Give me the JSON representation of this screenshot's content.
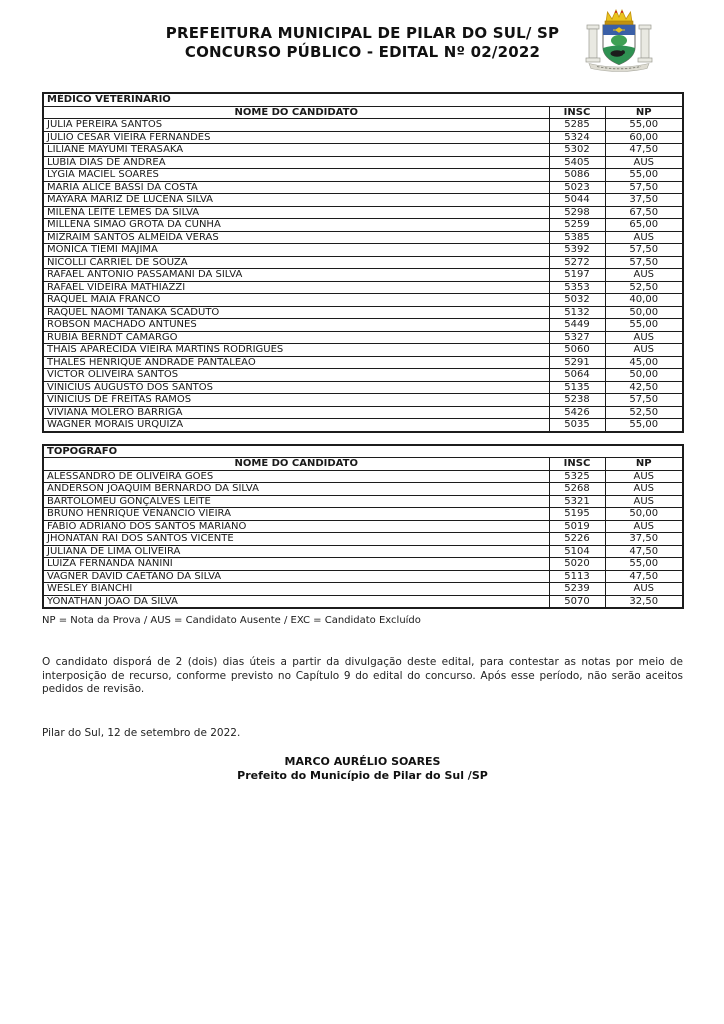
{
  "header": {
    "title_line1": "PREFEITURA MUNICIPAL DE PILAR DO SUL/ SP",
    "title_line2": "CONCURSO PÚBLICO - EDITAL Nº 02/2022"
  },
  "logo": {
    "name": "pilar-do-sul-coat-of-arms-icon"
  },
  "colors": {
    "crown_gold": "#eac31e",
    "crown_dark": "#c2920e",
    "crown_red": "#cc3322",
    "column_gray": "#e9e9e2",
    "column_edge": "#9a9a92",
    "shield_blue": "#3a5fa6",
    "shield_green": "#2f9152",
    "bush_green": "#3fa054",
    "animal_black": "#1c1c1c",
    "ribbon_gray": "#dedcd2"
  },
  "tables": [
    {
      "title": "MÉDICO VETERINÁRIO",
      "columns": [
        "NOME DO CANDIDATO",
        "INSC",
        "NP"
      ],
      "rows": [
        {
          "name": "JÚLIA PEREIRA SANTOS",
          "insc": "5285",
          "np": "55,00"
        },
        {
          "name": "JULIO CESAR VIEIRA FERNANDES",
          "insc": "5324",
          "np": "60,00"
        },
        {
          "name": "LILIANE MAYUMI TERASAKA",
          "insc": "5302",
          "np": "47,50"
        },
        {
          "name": "LUBIA DIAS DE ANDREA",
          "insc": "5405",
          "np": "AUS"
        },
        {
          "name": "LYGIA MACIEL SOARES",
          "insc": "5086",
          "np": "55,00"
        },
        {
          "name": "MARIA ALICE BASSI DA COSTA",
          "insc": "5023",
          "np": "57,50"
        },
        {
          "name": "MAYARA MARIZ DE LUCENA SILVA",
          "insc": "5044",
          "np": "37,50"
        },
        {
          "name": "MILENA LEITE LEMES DA SILVA",
          "insc": "5298",
          "np": "67,50"
        },
        {
          "name": "MILLENA SIMÃO GROTA DA CUNHA",
          "insc": "5259",
          "np": "65,00"
        },
        {
          "name": "MIZRAIM SANTOS ALMEIDA VERAS",
          "insc": "5385",
          "np": "AUS"
        },
        {
          "name": "MONICA TIEMI MAJIMA",
          "insc": "5392",
          "np": "57,50"
        },
        {
          "name": "NICOLLI CARRIEL DE SOUZA",
          "insc": "5272",
          "np": "57,50"
        },
        {
          "name": "RAFAEL ANTONIO PASSAMANI DA SILVA",
          "insc": "5197",
          "np": "AUS"
        },
        {
          "name": "RAFAEL VIDEIRA MATHIAZZI",
          "insc": "5353",
          "np": "52,50"
        },
        {
          "name": "RAQUEL MAIA FRANCO",
          "insc": "5032",
          "np": "40,00"
        },
        {
          "name": "RAQUEL NAOMI TANAKA SCADUTO",
          "insc": "5132",
          "np": "50,00"
        },
        {
          "name": "ROBSON MACHADO ANTUNES",
          "insc": "5449",
          "np": "55,00"
        },
        {
          "name": "RUBIA BERNDT CAMARGO",
          "insc": "5327",
          "np": "AUS"
        },
        {
          "name": "THAÍS APARECIDA VIEIRA MARTINS RODRIGUES",
          "insc": "5060",
          "np": "AUS"
        },
        {
          "name": "THALES HENRIQUE ANDRADE PANTALEÃO",
          "insc": "5291",
          "np": "45,00"
        },
        {
          "name": "VICTOR OLIVEIRA SANTOS",
          "insc": "5064",
          "np": "50,00"
        },
        {
          "name": "VINICIUS AUGUSTO DOS SANTOS",
          "insc": "5135",
          "np": "42,50"
        },
        {
          "name": "VINICIUS DE FREITAS RAMOS",
          "insc": "5238",
          "np": "57,50"
        },
        {
          "name": "VIVIANA MOLERO BARRIGA",
          "insc": "5426",
          "np": "52,50"
        },
        {
          "name": "WAGNER MORAIS URQUIZA",
          "insc": "5035",
          "np": "55,00"
        }
      ]
    },
    {
      "title": "TOPÓGRAFO",
      "columns": [
        "NOME DO CANDIDATO",
        "INSC",
        "NP"
      ],
      "rows": [
        {
          "name": "ALESSANDRO DE OLIVEIRA GÓES",
          "insc": "5325",
          "np": "AUS"
        },
        {
          "name": "ANDERSON JOAQUIM BERNARDO DA SILVA",
          "insc": "5268",
          "np": "AUS"
        },
        {
          "name": "BARTOLOMEU GONÇALVES LEITE",
          "insc": "5321",
          "np": "AUS"
        },
        {
          "name": "BRUNO HENRIQUE VENÂNCIO VIEIRA",
          "insc": "5195",
          "np": "50,00"
        },
        {
          "name": "FÁBIO ADRIANO DOS SANTOS MARIANO",
          "insc": "5019",
          "np": "AUS"
        },
        {
          "name": "JHONATAN RAI DOS SANTOS VICENTE",
          "insc": "5226",
          "np": "37,50"
        },
        {
          "name": "JULIANA DE LIMA OLIVEIRA",
          "insc": "5104",
          "np": "47,50"
        },
        {
          "name": "LUIZA FERNANDA NANINI",
          "insc": "5020",
          "np": "55,00"
        },
        {
          "name": "VAGNER DAVID CAETANO DA SILVA",
          "insc": "5113",
          "np": "47,50"
        },
        {
          "name": "WESLEY BIANCHI",
          "insc": "5239",
          "np": "AUS"
        },
        {
          "name": "YONATHAN JOÃO DA SILVA",
          "insc": "5070",
          "np": "32,50"
        }
      ]
    }
  ],
  "legend": "NP = Nota da Prova / AUS = Candidato Ausente / EXC = Candidato Excluído",
  "paragraph": "O candidato disporá de 2 (dois) dias úteis a partir da divulgação deste edital, para contestar as notas por meio de interposição de recurso, conforme previsto no Capítulo 9 do edital do concurso. Após esse período, não serão aceitos pedidos de revisão.",
  "dateline": "Pilar do Sul, 12 de setembro de 2022.",
  "signature": {
    "name": "MARCO AURÉLIO SOARES",
    "role": "Prefeito do Município de Pilar do Sul /SP"
  }
}
